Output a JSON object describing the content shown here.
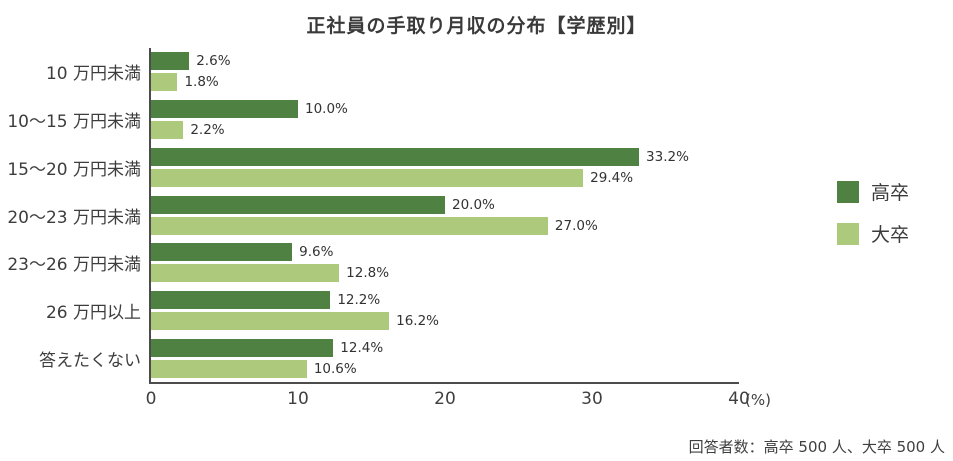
{
  "title": "正社員の手取り月収の分布【学歴別】",
  "footer": "回答者数：高卒 500 人、大卒 500 人",
  "chart_data": {
    "type": "bar",
    "orientation": "horizontal",
    "title": "正社員の手取り月収の分布【学歴別】",
    "categories": [
      "10 万円未満",
      "10〜15 万円未満",
      "15〜20 万円未満",
      "20〜23 万円未満",
      "23〜26 万円未満",
      "26 万円以上",
      "答えたくない"
    ],
    "series": [
      {
        "name": "高卒",
        "color": "#4f8142",
        "values": [
          2.6,
          10.0,
          33.2,
          20.0,
          9.6,
          12.2,
          12.4
        ]
      },
      {
        "name": "大卒",
        "color": "#adca7c",
        "values": [
          1.8,
          2.2,
          29.4,
          27.0,
          12.8,
          16.2,
          10.6
        ]
      }
    ],
    "value_labels": [
      [
        "2.6%",
        "10.0%",
        "33.2%",
        "20.0%",
        "9.6%",
        "12.2%",
        "12.4%"
      ],
      [
        "1.8%",
        "2.2%",
        "29.4%",
        "27.0%",
        "12.8%",
        "16.2%",
        "10.6%"
      ]
    ],
    "xlim": [
      0,
      40
    ],
    "x_ticks": [
      0,
      10,
      20,
      30,
      40
    ],
    "x_unit": "(%)",
    "grid": false,
    "legend_position": "right",
    "note": "回答者数：高卒 500 人、大卒 500 人"
  },
  "colors": {
    "axis": "#4c4c4c",
    "title_text": "#3a3a3a",
    "label_text": "#3d3d3d",
    "dark_green": "#4f8142",
    "light_green": "#adca7c"
  }
}
